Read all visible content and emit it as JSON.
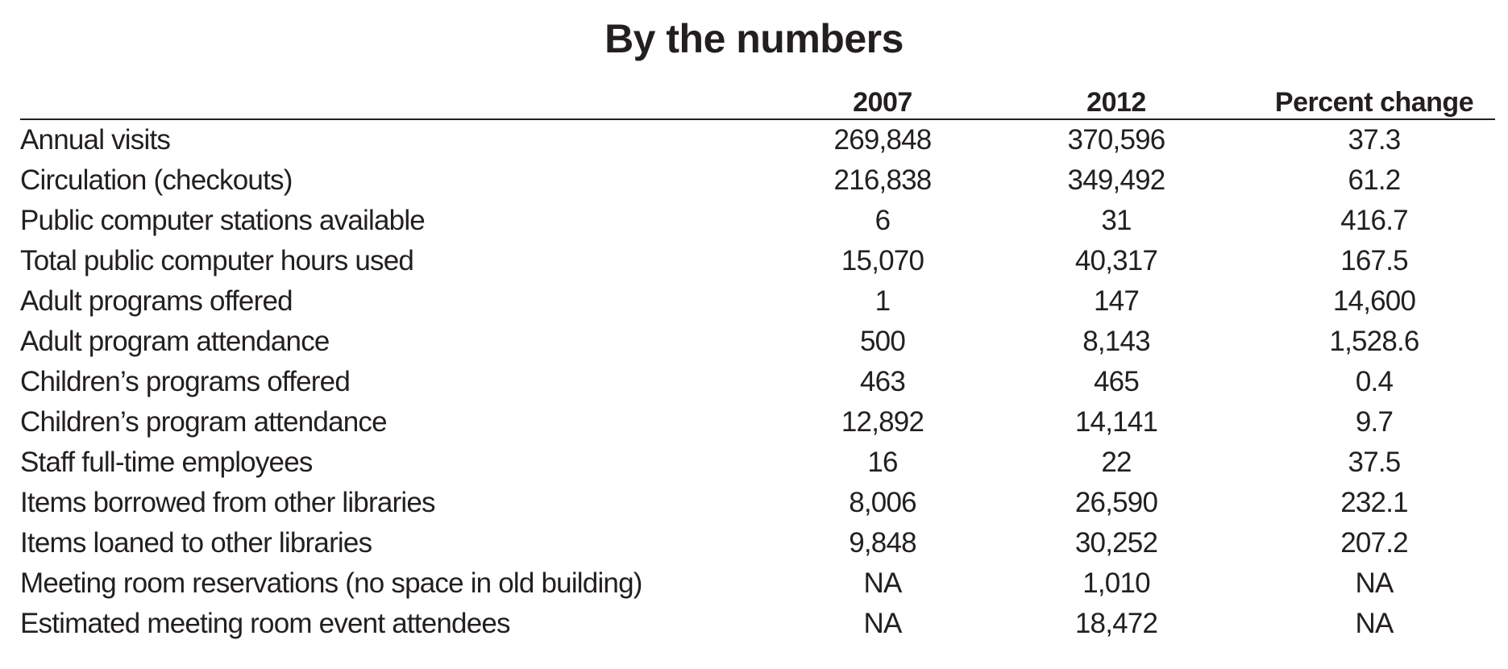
{
  "title": "By the numbers",
  "table": {
    "headers": [
      "",
      "2007",
      "2012",
      "Percent change"
    ],
    "rows": [
      {
        "label": "Annual visits",
        "y2007": "269,848",
        "y2012": "370,596",
        "pct": "37.3"
      },
      {
        "label": "Circulation (checkouts)",
        "y2007": "216,838",
        "y2012": "349,492",
        "pct": "61.2"
      },
      {
        "label": "Public computer stations available",
        "y2007": "6",
        "y2012": "31",
        "pct": "416.7"
      },
      {
        "label": "Total public computer hours used",
        "y2007": "15,070",
        "y2012": "40,317",
        "pct": "167.5"
      },
      {
        "label": "Adult programs offered",
        "y2007": "1",
        "y2012": "147",
        "pct": "14,600"
      },
      {
        "label": "Adult program attendance",
        "y2007": "500",
        "y2012": "8,143",
        "pct": "1,528.6"
      },
      {
        "label": "Children’s programs offered",
        "y2007": "463",
        "y2012": "465",
        "pct": "0.4"
      },
      {
        "label": "Children’s program attendance",
        "y2007": "12,892",
        "y2012": "14,141",
        "pct": "9.7"
      },
      {
        "label": "Staff full-time employees",
        "y2007": "16",
        "y2012": "22",
        "pct": "37.5"
      },
      {
        "label": "Items borrowed from other libraries",
        "y2007": "8,006",
        "y2012": "26,590",
        "pct": "232.1"
      },
      {
        "label": "Items loaned to other libraries",
        "y2007": "9,848",
        "y2012": "30,252",
        "pct": "207.2"
      },
      {
        "label": "Meeting room reservations (no space in old building)",
        "y2007": "NA",
        "y2012": "1,010",
        "pct": "NA"
      },
      {
        "label": "Estimated meeting room event attendees",
        "y2007": "NA",
        "y2012": "18,472",
        "pct": "NA"
      }
    ]
  }
}
